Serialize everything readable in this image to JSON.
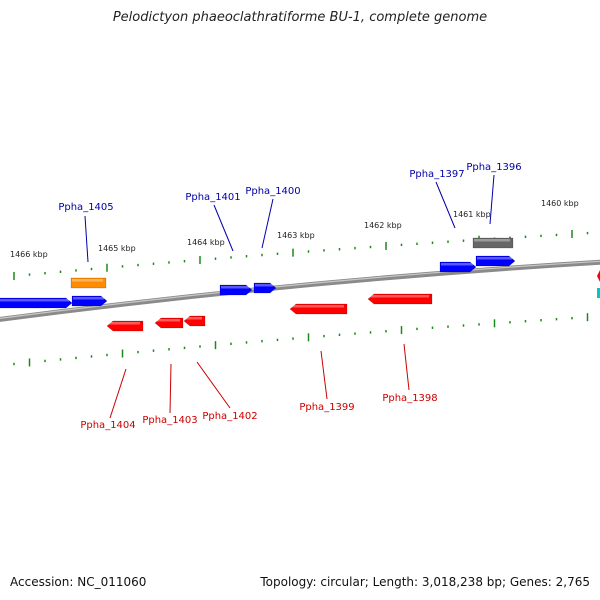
{
  "title": "Pelodictyon phaeoclathratiforme BU-1, complete genome",
  "footer": {
    "accession": "Accession: NC_011060",
    "summary": "Topology: circular; Length: 3,018,238 bp; Genes: 2,765"
  },
  "colors": {
    "forward_gene": "#0000ff",
    "reverse_gene": "#ff0000",
    "highlight_gene": "#ff8c00",
    "gray_gene": "#666666",
    "tick": "#1a8a1a",
    "forward_label": "#0000aa",
    "reverse_label": "#cc0000"
  },
  "scale_labels": [
    "1466 kbp",
    "1465 kbp",
    "1464 kbp",
    "1463 kbp",
    "1462 kbp",
    "1461 kbp",
    "1460 kbp"
  ],
  "forward_gene_labels": [
    "Ppha_1405",
    "Ppha_1401",
    "Ppha_1400",
    "Ppha_1397",
    "Ppha_1396"
  ],
  "reverse_gene_labels": [
    "Ppha_1404",
    "Ppha_1403",
    "Ppha_1402",
    "Ppha_1399",
    "Ppha_1398"
  ]
}
